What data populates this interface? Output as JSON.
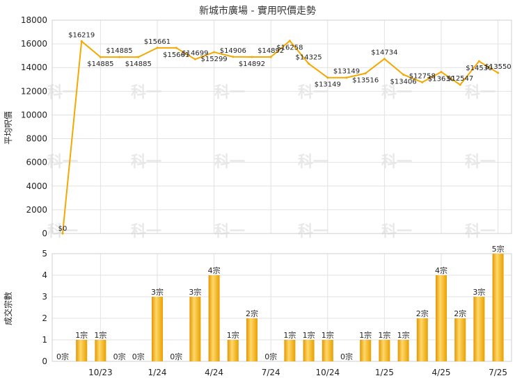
{
  "chart_data": [
    {
      "type": "line",
      "title": "新城市廣場 - 實用呎價走勢",
      "ylabel": "平均呎價",
      "ylim": [
        0,
        18000
      ],
      "yticks": [
        0,
        2000,
        4000,
        6000,
        8000,
        10000,
        12000,
        14000,
        16000,
        18000
      ],
      "grid": true,
      "series": [
        {
          "values": [
            0,
            16219,
            14885,
            14885,
            14885,
            15661,
            15661,
            14699,
            15299,
            14906,
            14892,
            14892,
            16258,
            14325,
            13149,
            13149,
            13516,
            14734,
            13406,
            12758,
            13630,
            12547,
            14530,
            13550
          ],
          "labels": [
            "$0",
            "$16219",
            "$14885",
            "$14885",
            "$14885",
            "$15661",
            "$15661",
            "$14699",
            "$15299",
            "$14906",
            "$14892",
            "$14892",
            "$16258",
            "$14325",
            "$13149",
            "$13149",
            "$13516",
            "$14734",
            "$13406",
            "$12758",
            "$13630",
            "$12547",
            "$14530",
            "$13550"
          ]
        }
      ],
      "color": "#f5a800"
    },
    {
      "type": "bar",
      "ylabel": "成交宗數",
      "ylim": [
        0,
        5
      ],
      "yticks": [
        0,
        1,
        2,
        3,
        4,
        5
      ],
      "grid": true,
      "categories": [
        "",
        "",
        "10/23",
        "",
        "",
        "1/24",
        "",
        "",
        "4/24",
        "",
        "",
        "7/24",
        "",
        "",
        "10/24",
        "",
        "",
        "1/25",
        "",
        "",
        "4/25",
        "",
        "",
        "7/25"
      ],
      "values": [
        0,
        1,
        1,
        0,
        0,
        3,
        0,
        3,
        4,
        1,
        2,
        0,
        1,
        1,
        1,
        0,
        1,
        1,
        1,
        2,
        4,
        2,
        3,
        5
      ],
      "labels": [
        "0宗",
        "1宗",
        "1宗",
        "0宗",
        "0宗",
        "3宗",
        "0宗",
        "3宗",
        "4宗",
        "1宗",
        "2宗",
        "0宗",
        "1宗",
        "1宗",
        "1宗",
        "0宗",
        "1宗",
        "1宗",
        "1宗",
        "2宗",
        "4宗",
        "2宗",
        "3宗",
        "5宗"
      ],
      "color": "#f5a800"
    }
  ],
  "watermark": "科一"
}
